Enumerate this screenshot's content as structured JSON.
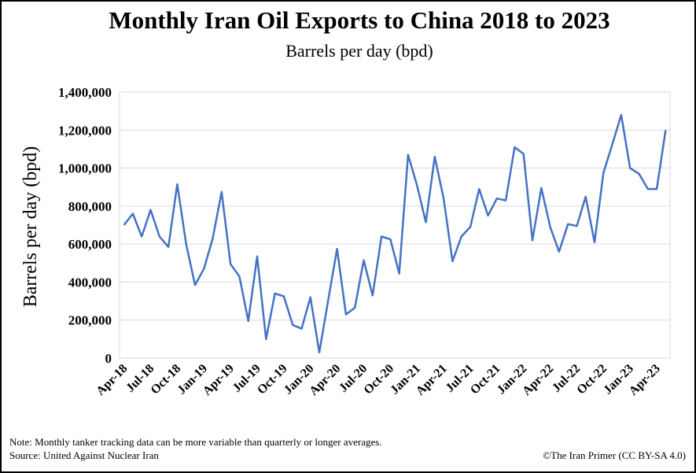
{
  "chart_data": {
    "type": "line",
    "title": "Monthly Iran Oil Exports to China 2018 to 2023",
    "subtitle": "Barrels per day (bpd)",
    "y_label": "Barrels per day (bpd)",
    "note": "Note: Monthly  tanker tracking  data can be more variable  than  quarterly  or longer  averages.",
    "source": "Source:  United  Against  Nuclear Iran",
    "credit": "©The  Iran Primer  (CC BY-SA 4.0)",
    "categories": [
      "Apr-18",
      null,
      null,
      "Jul-18",
      null,
      null,
      "Oct-18",
      null,
      null,
      "Jan-19",
      null,
      null,
      "Apr-19",
      null,
      null,
      "Jul-19",
      null,
      null,
      "Oct-19",
      null,
      null,
      "Jan-20",
      null,
      null,
      "Apr-20",
      null,
      null,
      "Jul-20",
      null,
      null,
      "Oct-20",
      null,
      null,
      "Jan-21",
      null,
      null,
      "Apr-21",
      null,
      null,
      "Jul-21",
      null,
      null,
      "Oct-21",
      null,
      null,
      "Jan-22",
      null,
      null,
      "Apr-22",
      null,
      null,
      "Jul-22",
      null,
      null,
      "Oct-22",
      null,
      null,
      "Jan-23",
      null,
      null,
      "Apr-23",
      null
    ],
    "series": [
      {
        "name": "Barrels per day",
        "color": "#4472c4",
        "values": [
          700000,
          760000,
          640000,
          780000,
          640000,
          585000,
          915000,
          600000,
          385000,
          470000,
          630000,
          875000,
          495000,
          430000,
          195000,
          535000,
          100000,
          340000,
          325000,
          175000,
          155000,
          320000,
          30000,
          305000,
          575000,
          230000,
          265000,
          515000,
          330000,
          640000,
          625000,
          445000,
          1070000,
          910000,
          715000,
          1060000,
          840000,
          510000,
          640000,
          690000,
          890000,
          750000,
          840000,
          830000,
          1110000,
          1075000,
          620000,
          895000,
          690000,
          560000,
          705000,
          695000,
          850000,
          610000,
          975000,
          1125000,
          1280000,
          1000000,
          970000,
          890000,
          890000,
          1200000
        ]
      }
    ],
    "ylim": [
      0,
      1400000
    ],
    "yticks": [
      0,
      {
        "value": 200000,
        "label": "200,000"
      },
      {
        "value": 400000,
        "label": "400,000"
      },
      {
        "value": 600000,
        "label": "600,000"
      },
      {
        "value": 800000,
        "label": "800,000"
      },
      {
        "value": 1000000,
        "label": "1,000,000"
      },
      {
        "value": 1200000,
        "label": "1,200,000"
      },
      {
        "value": 1400000,
        "label": "1,400,000"
      }
    ],
    "grid": true
  }
}
